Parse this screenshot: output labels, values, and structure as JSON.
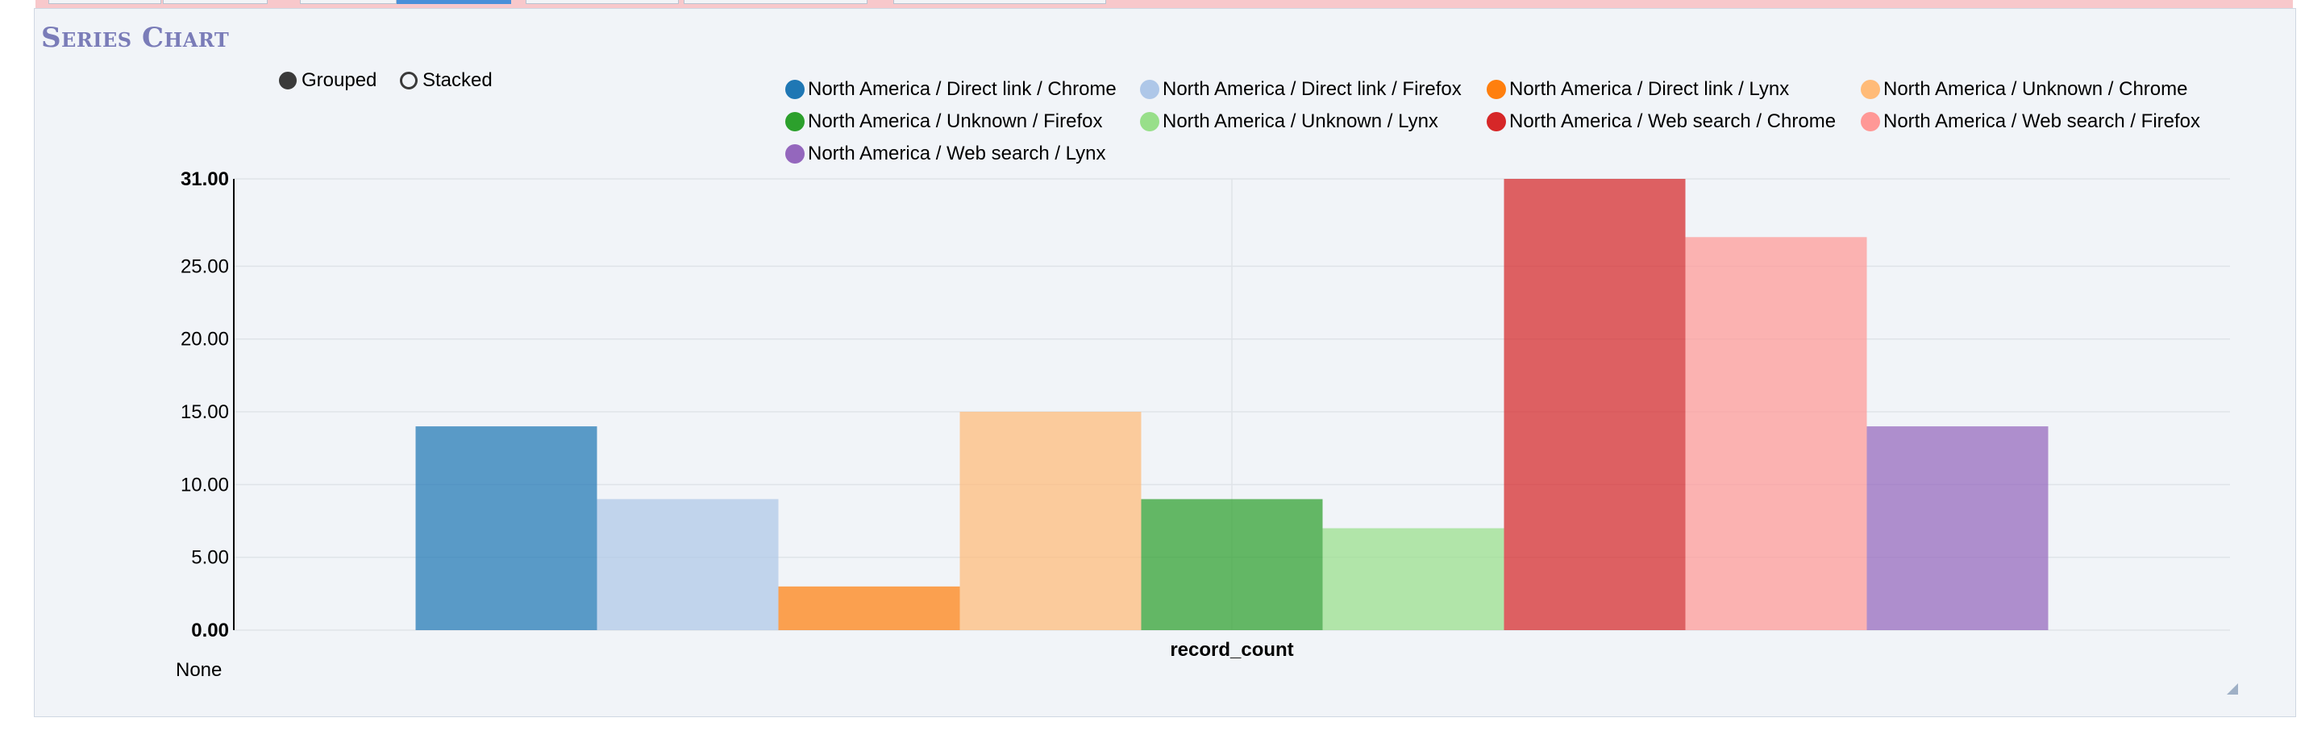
{
  "panel": {
    "title": "Series Chart"
  },
  "mode_options": [
    {
      "label": "Grouped",
      "selected": true
    },
    {
      "label": "Stacked",
      "selected": false
    }
  ],
  "footer_text": "None",
  "chart_data": {
    "type": "bar",
    "categories": [
      "record_count"
    ],
    "xlabel": "record_count",
    "ylabel": "",
    "ylim": [
      0,
      31
    ],
    "yticks": [
      "0.00",
      "5.00",
      "10.00",
      "15.00",
      "20.00",
      "25.00",
      "31.00"
    ],
    "ytick_values": [
      0,
      5,
      10,
      15,
      20,
      25,
      31
    ],
    "grid": true,
    "legend_position": "top",
    "series": [
      {
        "name": "North America / Direct link / Chrome",
        "values": [
          14
        ],
        "color": "#1f77b4"
      },
      {
        "name": "North America / Direct link / Firefox",
        "values": [
          9
        ],
        "color": "#aec7e8"
      },
      {
        "name": "North America / Direct link / Lynx",
        "values": [
          3
        ],
        "color": "#ff7f0e"
      },
      {
        "name": "North America / Unknown / Chrome",
        "values": [
          15
        ],
        "color": "#ffbb78"
      },
      {
        "name": "North America / Unknown / Firefox",
        "values": [
          9
        ],
        "color": "#2ca02c"
      },
      {
        "name": "North America / Unknown / Lynx",
        "values": [
          7
        ],
        "color": "#98df8a"
      },
      {
        "name": "North America / Web search / Chrome",
        "values": [
          31
        ],
        "color": "#d62728"
      },
      {
        "name": "North America / Web search / Firefox",
        "values": [
          27
        ],
        "color": "#ff9896"
      },
      {
        "name": "North America / Web search / Lynx",
        "values": [
          14
        ],
        "color": "#9467bd"
      }
    ]
  }
}
